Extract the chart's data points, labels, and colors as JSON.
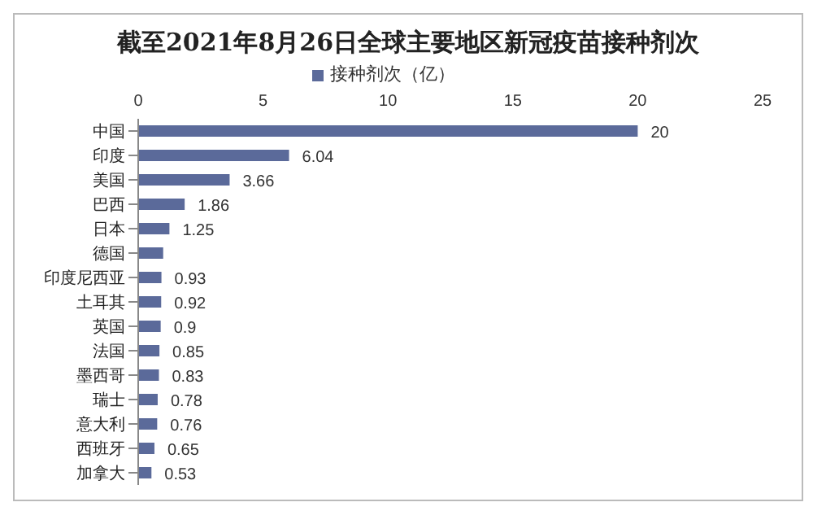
{
  "chart_data": {
    "type": "bar",
    "orientation": "horizontal",
    "title": "截至2021年8月26日全球主要地区新冠疫苗接种剂次",
    "categories": [
      "中国",
      "印度",
      "美国",
      "巴西",
      "日本",
      "德国",
      "印度尼西亚",
      "土耳其",
      "英国",
      "法国",
      "墨西哥",
      "瑞士",
      "意大利",
      "西班牙",
      "加拿大"
    ],
    "series": [
      {
        "name": "接种剂次（亿）",
        "color": "#5b6a9a",
        "values": [
          20,
          6.04,
          3.66,
          1.86,
          1.25,
          1.0,
          0.93,
          0.92,
          0.9,
          0.85,
          0.83,
          0.78,
          0.76,
          0.65,
          0.53
        ],
        "value_labels": [
          "20",
          "6.04",
          "3.66",
          "1.86",
          "1.25",
          null,
          "0.93",
          "0.92",
          "0.9",
          "0.85",
          "0.83",
          "0.78",
          "0.76",
          "0.65",
          "0.53"
        ]
      }
    ],
    "xlim": [
      0,
      25
    ],
    "xticks": [
      0,
      5,
      10,
      15,
      20,
      25
    ],
    "legend": "top",
    "grid": false
  }
}
